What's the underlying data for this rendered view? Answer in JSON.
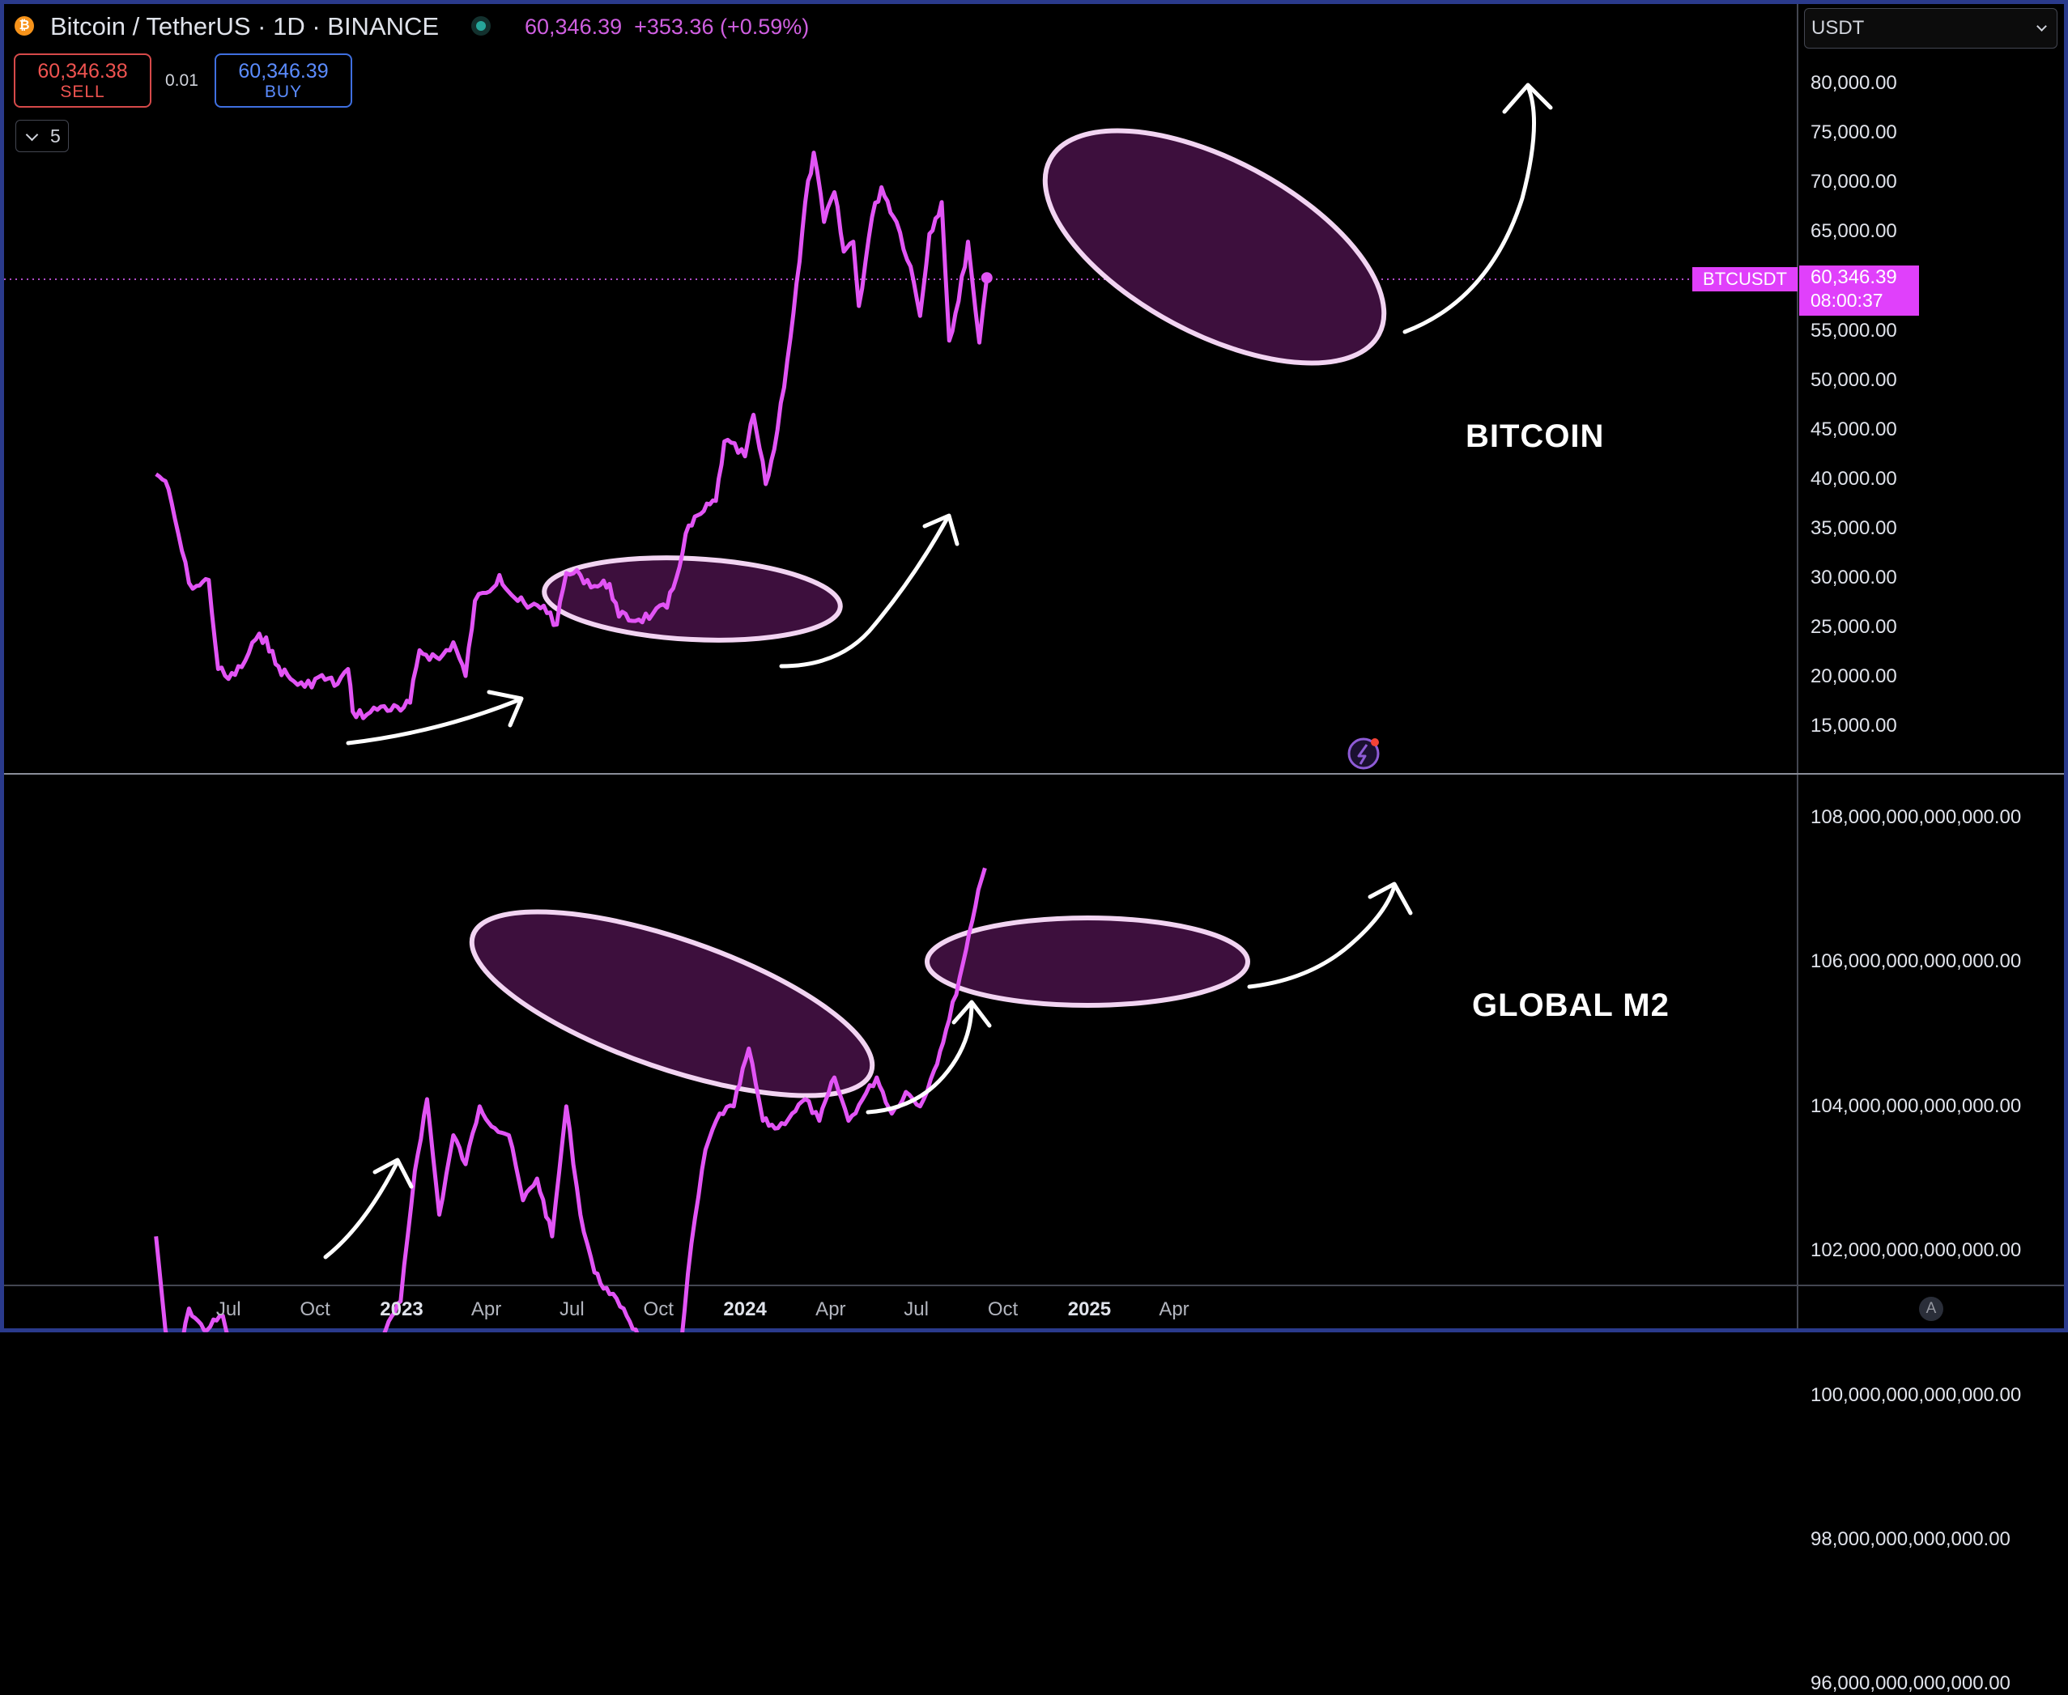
{
  "header": {
    "pair": "Bitcoin / TetherUS · 1D · BINANCE",
    "ohlc": "60,346.39  +353.36 (+0.59%)",
    "sell_price": "60,346.38",
    "sell_label": "SELL",
    "spread": "0.01",
    "buy_price": "60,346.39",
    "buy_label": "BUY",
    "indicator_count": "5",
    "currency": "USDT"
  },
  "price_tag": {
    "symbol": "BTCUSDT",
    "price": "60,346.39",
    "countdown": "08:00:37"
  },
  "colors": {
    "series": "#e254f5",
    "ellipse_fill": "#3d0f3d",
    "ellipse_stroke": "#f2d4f2",
    "tag": "#e040fb",
    "border": "#2a3a8c"
  },
  "annotations": {
    "top": "BITCOIN",
    "bottom": "GLOBAL M2"
  },
  "x_axis": {
    "labels": [
      "Jul",
      "Oct",
      "2023",
      "Apr",
      "Jul",
      "Oct",
      "2024",
      "Apr",
      "Jul",
      "Oct",
      "2025",
      "Apr"
    ]
  },
  "footer": {
    "auto_button": "A"
  },
  "chart_data": [
    {
      "type": "line",
      "series": [
        {
          "name": "BTCUSDT",
          "x": [
            "2022-04-15",
            "2022-04-25",
            "2022-05-05",
            "2022-05-20",
            "2022-05-28",
            "2022-06-10",
            "2022-06-20",
            "2022-07-01",
            "2022-07-15",
            "2022-07-30",
            "2022-08-10",
            "2022-08-20",
            "2022-09-05",
            "2022-09-20",
            "2022-10-05",
            "2022-10-25",
            "2022-11-05",
            "2022-11-10",
            "2022-11-25",
            "2022-12-10",
            "2022-12-31",
            "2023-01-10",
            "2023-01-20",
            "2023-02-10",
            "2023-02-25",
            "2023-03-10",
            "2023-03-20",
            "2023-04-01",
            "2023-04-15",
            "2023-05-01",
            "2023-05-15",
            "2023-06-01",
            "2023-06-15",
            "2023-06-25",
            "2023-07-10",
            "2023-07-25",
            "2023-08-10",
            "2023-08-20",
            "2023-09-10",
            "2023-09-25",
            "2023-10-10",
            "2023-10-20",
            "2023-10-30",
            "2023-11-15",
            "2023-12-01",
            "2023-12-10",
            "2024-01-01",
            "2024-01-10",
            "2024-01-23",
            "2024-02-01",
            "2024-02-15",
            "2024-02-28",
            "2024-03-05",
            "2024-03-14",
            "2024-03-25",
            "2024-04-05",
            "2024-04-15",
            "2024-04-25",
            "2024-05-01",
            "2024-05-15",
            "2024-05-25",
            "2024-06-10",
            "2024-06-25",
            "2024-07-05",
            "2024-07-15",
            "2024-07-28",
            "2024-08-05",
            "2024-08-15",
            "2024-08-25",
            "2024-09-06",
            "2024-09-14"
          ],
          "y": [
            40500,
            39800,
            36000,
            29500,
            29200,
            29800,
            20800,
            19800,
            21000,
            23800,
            24000,
            21300,
            19800,
            19000,
            20000,
            19300,
            20800,
            16500,
            16200,
            17000,
            16600,
            17400,
            22700,
            21800,
            23500,
            20100,
            27700,
            28500,
            30300,
            28000,
            27000,
            27200,
            25300,
            30500,
            30300,
            29200,
            29400,
            26100,
            25800,
            26400,
            27000,
            30000,
            34500,
            36500,
            37800,
            43800,
            42300,
            46500,
            39500,
            43000,
            52000,
            62000,
            68000,
            73000,
            66000,
            69000,
            63000,
            64000,
            57500,
            66500,
            69500,
            66000,
            61500,
            56500,
            64800,
            68000,
            54000,
            58000,
            64000,
            53800,
            60346
          ]
        }
      ],
      "ylim": [
        12000,
        83500
      ],
      "y_ticks": [
        "80,000.00",
        "75,000.00",
        "70,000.00",
        "65,000.00",
        "60,000.00",
        "55,000.00",
        "50,000.00",
        "45,000.00",
        "40,000.00",
        "35,000.00",
        "30,000.00",
        "25,000.00",
        "20,000.00",
        "15,000.00"
      ],
      "last_value": 60346.39
    },
    {
      "type": "line",
      "series": [
        {
          "x": [
            "2022-04-15",
            "2022-04-25",
            "2022-05-05",
            "2022-05-20",
            "2022-06-05",
            "2022-06-25",
            "2022-07-10",
            "2022-07-25",
            "2022-08-10",
            "2022-08-25",
            "2022-09-10",
            "2022-09-25",
            "2022-10-10",
            "2022-10-20",
            "2022-10-30",
            "2022-11-08",
            "2022-11-20",
            "2022-12-01",
            "2022-12-15",
            "2022-12-31",
            "2023-01-15",
            "2023-01-28",
            "2023-02-10",
            "2023-02-25",
            "2023-03-10",
            "2023-03-25",
            "2023-04-10",
            "2023-04-25",
            "2023-05-10",
            "2023-05-25",
            "2023-06-10",
            "2023-06-25",
            "2023-07-10",
            "2023-07-25",
            "2023-08-10",
            "2023-08-25",
            "2023-09-10",
            "2023-09-25",
            "2023-10-10",
            "2023-10-25",
            "2023-11-05",
            "2023-11-20",
            "2023-12-05",
            "2023-12-20",
            "2024-01-05",
            "2024-01-20",
            "2024-02-05",
            "2024-02-20",
            "2024-03-05",
            "2024-03-20",
            "2024-04-05",
            "2024-04-20",
            "2024-05-05",
            "2024-05-20",
            "2024-06-05",
            "2024-06-20",
            "2024-07-05",
            "2024-07-20",
            "2024-08-05",
            "2024-08-20",
            "2024-09-05",
            "2024-09-12"
          ],
          "y": [
            102200000000000.0,
            100900000000000.0,
            100200000000000.0,
            101200000000000.0,
            100900000000000.0,
            101100000000000.0,
            100300000000000.0,
            100600000000000.0,
            100000000000000.0,
            99100000000000.0,
            98400000000000.0,
            97000000000000.0,
            96700000000000.0,
            96200000000000.0,
            96800000000000.0,
            96000000000000.0,
            98500000000000.0,
            100500000000000.0,
            100900000000000.0,
            101300000000000.0,
            103100000000000.0,
            104100000000000.0,
            102500000000000.0,
            103600000000000.0,
            103200000000000.0,
            104000000000000.0,
            103700000000000.0,
            103600000000000.0,
            102700000000000.0,
            103000000000000.0,
            102200000000000.0,
            104000000000000.0,
            102500000000000.0,
            101700000000000.0,
            101400000000000.0,
            101200000000000.0,
            100800000000000.0,
            100500000000000.0,
            100600000000000.0,
            100700000000000.0,
            102100000000000.0,
            103400000000000.0,
            103900000000000.0,
            104000000000000.0,
            104800000000000.0,
            103800000000000.0,
            103700000000000.0,
            103900000000000.0,
            104100000000000.0,
            103800000000000.0,
            104400000000000.0,
            103800000000000.0,
            104100000000000.0,
            104400000000000.0,
            103900000000000.0,
            104200000000000.0,
            104000000000000.0,
            104500000000000.0,
            105200000000000.0,
            106000000000000.0,
            107000000000000.0,
            107300000000000.0
          ]
        }
      ],
      "ylim": [
        95000000000000.0,
        108900000000000.0
      ],
      "y_ticks": [
        "108,000,000,000,000.00",
        "106,000,000,000,000.00",
        "104,000,000,000,000.00",
        "102,000,000,000,000.00",
        "100,000,000,000,000.00",
        "98,000,000,000,000.00",
        "96,000,000,000,000.00"
      ]
    }
  ]
}
